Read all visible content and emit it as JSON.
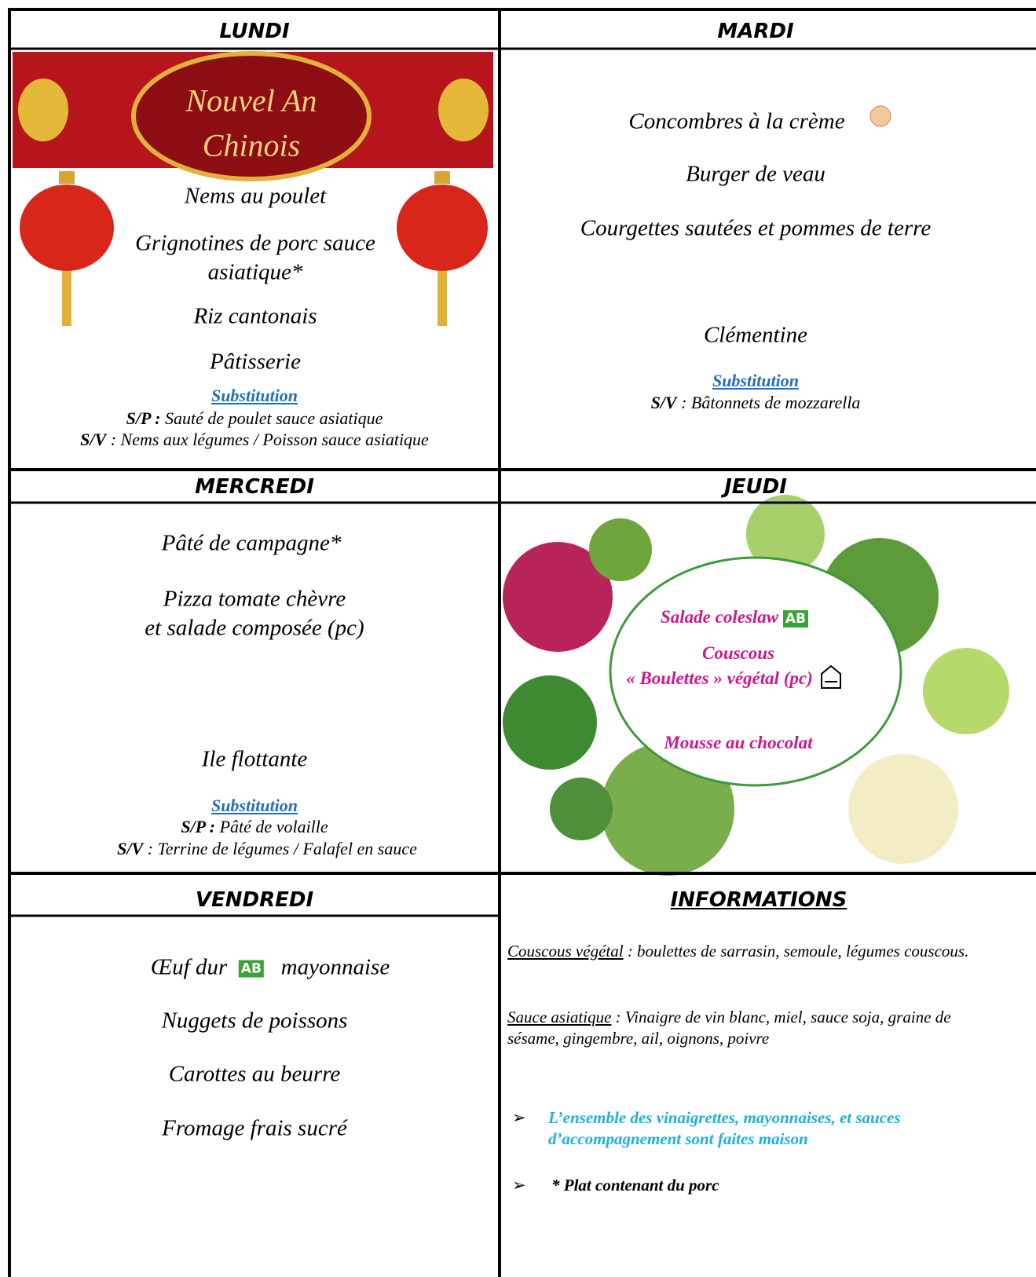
{
  "lundi": {
    "day": "LUNDI",
    "banner": [
      "Nouvel An",
      "Chinois"
    ],
    "items": [
      "Nems au poulet",
      "Grignotines de porc sauce",
      "asiatique*",
      "Riz cantonais",
      "Pâtisserie"
    ],
    "substitution": {
      "title": "Substitution",
      "lines": [
        {
          "label": "S/P :",
          "text": " Sauté de poulet sauce asiatique"
        },
        {
          "label": "S/V",
          "text": " : Nems aux légumes   /   Poisson sauce asiatique"
        }
      ]
    }
  },
  "mardi": {
    "day": "MARDI",
    "items": [
      "Concombres à la crème",
      "Burger de veau",
      "Courgettes sautées et pommes de terre",
      "Clémentine"
    ],
    "substitution": {
      "title": "Substitution",
      "lines": [
        {
          "label": "S/V",
          "text": " : Bâtonnets de mozzarella"
        }
      ]
    }
  },
  "mercredi": {
    "day": "MERCREDI",
    "items": [
      "Pâté de campagne*",
      "Pizza tomate chèvre",
      "et salade composée (pc)",
      "Ile flottante"
    ],
    "substitution": {
      "title": "Substitution",
      "lines": [
        {
          "label": "S/P :",
          "text": " Pâté de volaille"
        },
        {
          "label": "S/V",
          "text": " : Terrine de légumes   /   Falafel en sauce"
        }
      ]
    }
  },
  "jeudi": {
    "day": "JEUDI",
    "items": [
      "Salade coleslaw",
      "Couscous",
      "« Boulettes » végétal (pc)",
      "Mousse au chocolat"
    ],
    "bio_logo": "AB"
  },
  "vendredi": {
    "day": "VENDREDI",
    "items": [
      "Œuf dur",
      "mayonnaise",
      "Nuggets de poissons",
      "Carottes au beurre",
      "Fromage frais sucré"
    ],
    "bio_logo": "AB"
  },
  "informations": {
    "title": "INFORMATIONS",
    "notes": [
      {
        "term": "Couscous végétal",
        "text": " : boulettes de sarrasin, semoule, légumes couscous."
      },
      {
        "term": "Sauce asiatique",
        "text": " : Vinaigre de vin blanc, miel, sauce soja, graine de sésame, gingembre, ail, oignons, poivre"
      }
    ],
    "bullets": [
      "L’ensemble des vinaigrettes, mayonnaises, et sauces d’accompagnement sont faites maison",
      "* Plat contenant du porc"
    ]
  }
}
